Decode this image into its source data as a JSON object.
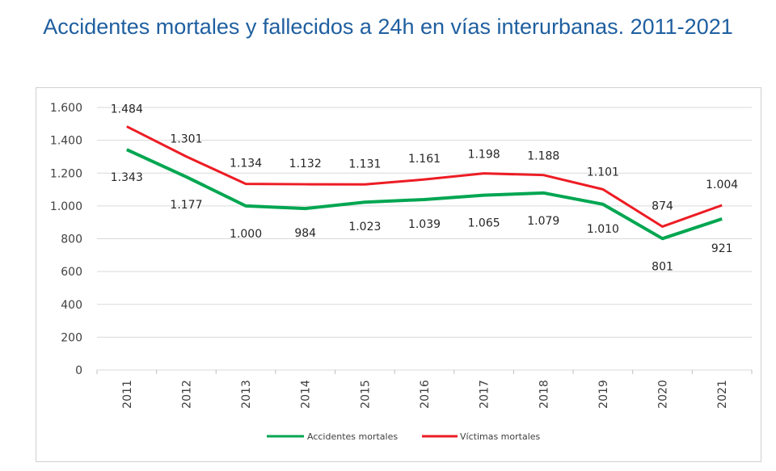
{
  "title": "Accidentes mortales y fallecidos a 24h en vías interurbanas. 2011-2021",
  "chart_data": {
    "type": "line",
    "categories": [
      "2011",
      "2012",
      "2013",
      "2014",
      "2015",
      "2016",
      "2017",
      "2018",
      "2019",
      "2020",
      "2021"
    ],
    "series": [
      {
        "name": "Accidentes mortales",
        "color": "#00a651",
        "values": [
          1343,
          1177,
          1000,
          984,
          1023,
          1039,
          1065,
          1079,
          1010,
          801,
          921
        ],
        "labels": [
          "1.343",
          "1.177",
          "1.000",
          "984",
          "1.023",
          "1.039",
          "1.065",
          "1.079",
          "1.010",
          "801",
          "921"
        ]
      },
      {
        "name": "Víctimas mortales",
        "color": "#ed1c24",
        "values": [
          1484,
          1301,
          1134,
          1132,
          1131,
          1161,
          1198,
          1188,
          1101,
          874,
          1004
        ],
        "labels": [
          "1.484",
          "1.301",
          "1.134",
          "1.132",
          "1.131",
          "1.161",
          "1.198",
          "1.188",
          "1.101",
          "874",
          "1.004"
        ]
      }
    ],
    "yticks": [
      0,
      200,
      400,
      600,
      800,
      1000,
      1200,
      1400,
      1600
    ],
    "ytick_labels": [
      "0",
      "200",
      "400",
      "600",
      "800",
      "1.000",
      "1.200",
      "1.400",
      "1.600"
    ],
    "ylim": [
      0,
      1600
    ],
    "grid": true,
    "legend": "bottom"
  }
}
